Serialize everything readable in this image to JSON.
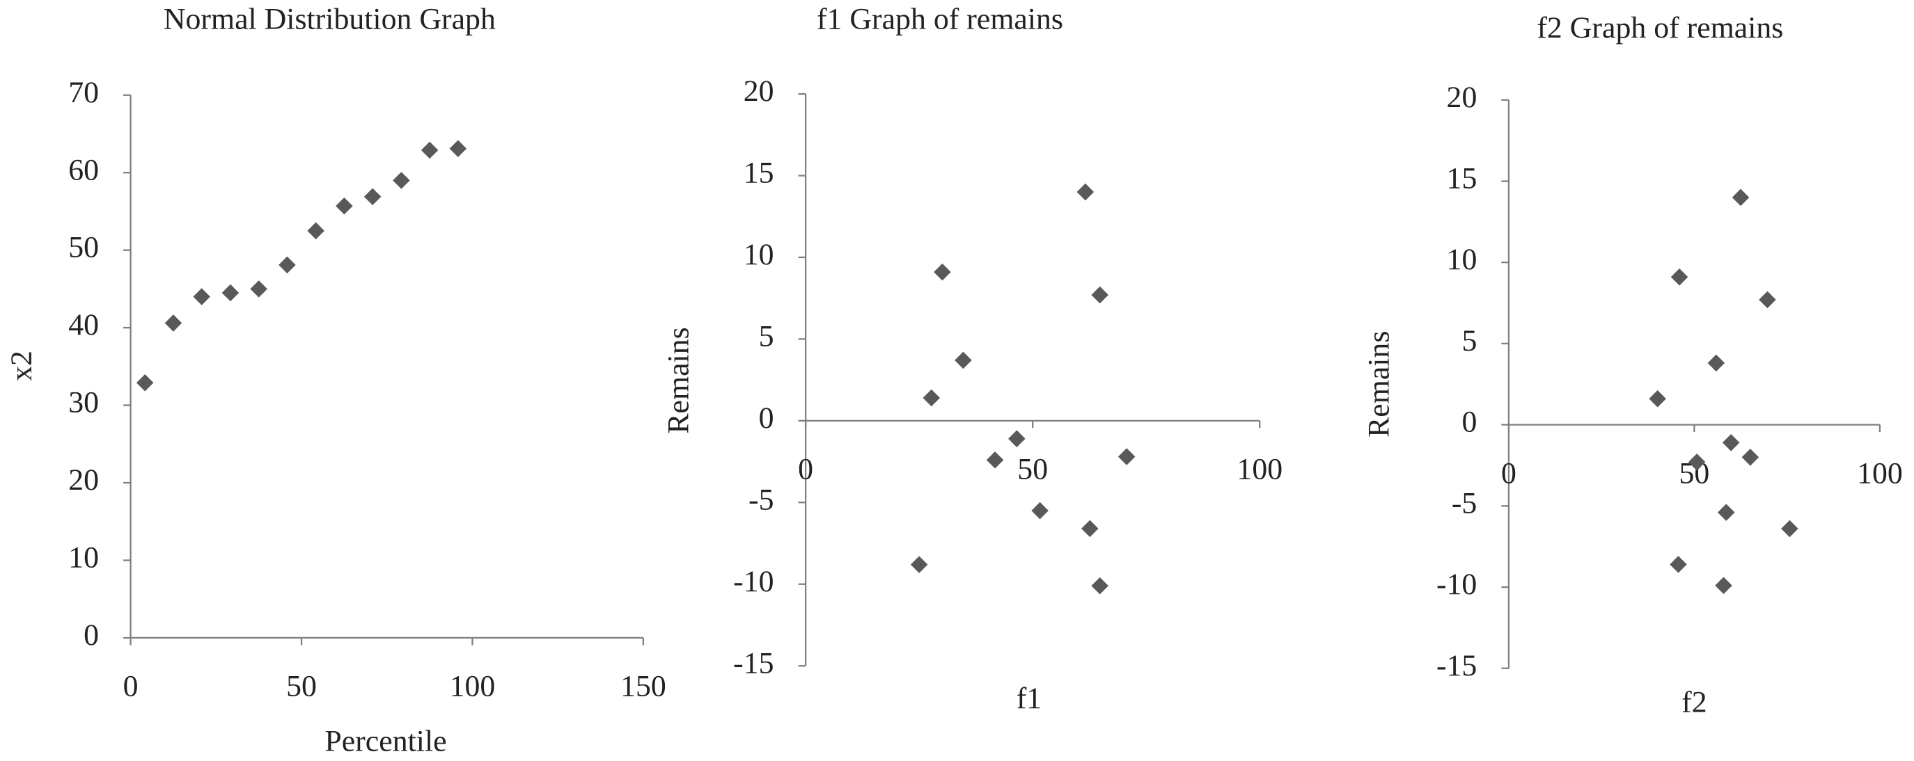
{
  "chart_data": [
    {
      "type": "scatter",
      "title": "Normal Distribution Graph",
      "x_label": "Percentile",
      "y_label": "x2",
      "x": [
        4.2,
        12.5,
        20.8,
        29.2,
        37.5,
        45.8,
        54.2,
        62.5,
        70.8,
        79.2,
        87.5,
        95.8
      ],
      "values": [
        32.9,
        40.6,
        44,
        44.5,
        45,
        48.1,
        52.5,
        55.7,
        56.9,
        59,
        62.9,
        63.1
      ],
      "color": "#595959",
      "xlim": [
        0,
        150
      ],
      "xticks": [
        0,
        50,
        100,
        150
      ],
      "ylim": [
        0,
        70
      ],
      "yticks": [
        0,
        10,
        20,
        30,
        40,
        50,
        60,
        70
      ]
    },
    {
      "type": "scatter",
      "title": "f1 Graph of remains",
      "x_label": "f1",
      "y_label": "Remains",
      "x": [
        30.1,
        34.7,
        27.7,
        61.6,
        64.8,
        46.5,
        41.7,
        70.7,
        51.6,
        62.6,
        25,
        64.8
      ],
      "values": [
        9.1,
        3.7,
        1.4,
        14,
        7.7,
        -1.1,
        -2.4,
        -2.2,
        -5.5,
        -6.6,
        -8.8,
        -10.1
      ],
      "color": "#595959",
      "xlim": [
        0,
        100
      ],
      "xticks": [
        0,
        50,
        100
      ],
      "ylim": [
        -15,
        20
      ],
      "yticks": [
        -15,
        -10,
        -5,
        0,
        5,
        10,
        15,
        20
      ]
    },
    {
      "type": "scatter",
      "title": "f2 Graph of remains",
      "x_label": "f2",
      "y_label": "Remains",
      "x": [
        46,
        55.9,
        40.1,
        62.5,
        69.7,
        50.7,
        59.9,
        65.1,
        58.6,
        75.7,
        45.7,
        57.9
      ],
      "values": [
        9.1,
        3.8,
        1.6,
        14,
        7.7,
        -2.3,
        -1.1,
        -2,
        -5.4,
        -6.4,
        -8.6,
        -9.9
      ],
      "color": "#595959",
      "xlim": [
        0,
        100
      ],
      "xticks": [
        0,
        50,
        100
      ],
      "ylim": [
        -15,
        20
      ],
      "yticks": [
        -15,
        -10,
        -5,
        0,
        5,
        10,
        15,
        20
      ]
    }
  ]
}
